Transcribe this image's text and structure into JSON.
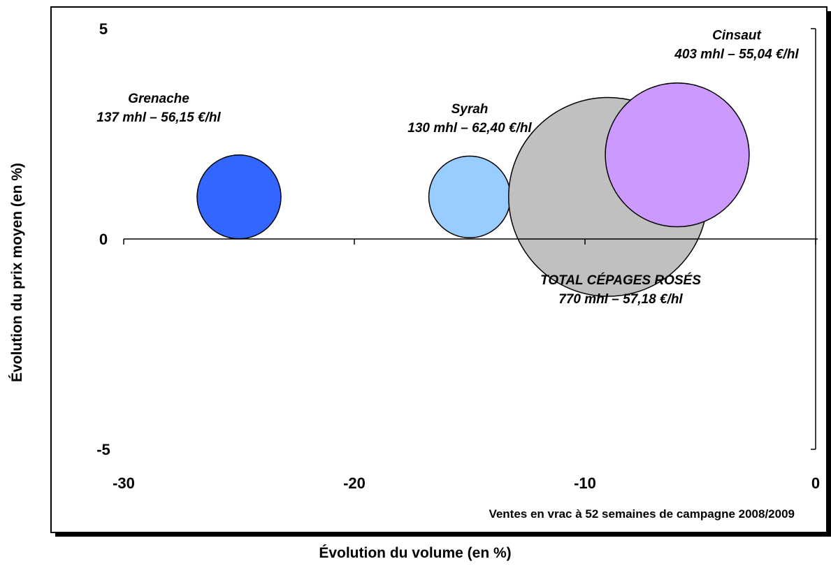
{
  "chart_data": {
    "type": "scatter",
    "xlabel": "Évolution du volume (en %)",
    "ylabel": "Évolution du prix moyen (en %)",
    "note": "Ventes en vrac à 52 semaines de campagne 2008/2009",
    "xlim": [
      -30,
      0
    ],
    "ylim": [
      -5,
      5
    ],
    "x_ticks": [
      -30,
      -20,
      -10,
      0
    ],
    "y_ticks": [
      -5,
      0,
      5
    ],
    "x_tick_labels": [
      "-30",
      "-20",
      "-10",
      "0"
    ],
    "y_tick_labels": [
      "-5",
      "0",
      "5"
    ],
    "grid": false,
    "bubbles": [
      {
        "name": "Grenache",
        "detail": "137 mhl – 56,15 €/hl",
        "x": -25,
        "y": 1.0,
        "volume_mhl": 137,
        "price_eur_hl": 56.15,
        "color": "#3366ff"
      },
      {
        "name": "Syrah",
        "detail": "130 mhl – 62,40 €/hl",
        "x": -15,
        "y": 1.0,
        "volume_mhl": 130,
        "price_eur_hl": 62.4,
        "color": "#99ccff"
      },
      {
        "name": "TOTAL CÉPAGES ROSÉS",
        "detail": "770 mhl – 57,18 €/hl",
        "x": -9,
        "y": 1.0,
        "volume_mhl": 770,
        "price_eur_hl": 57.18,
        "color": "#c0c0c0"
      },
      {
        "name": "Cinsaut",
        "detail": "403 mhl – 55,04 €/hl",
        "x": -6,
        "y": 2.0,
        "volume_mhl": 403,
        "price_eur_hl": 55.04,
        "color": "#cc99ff"
      }
    ]
  }
}
